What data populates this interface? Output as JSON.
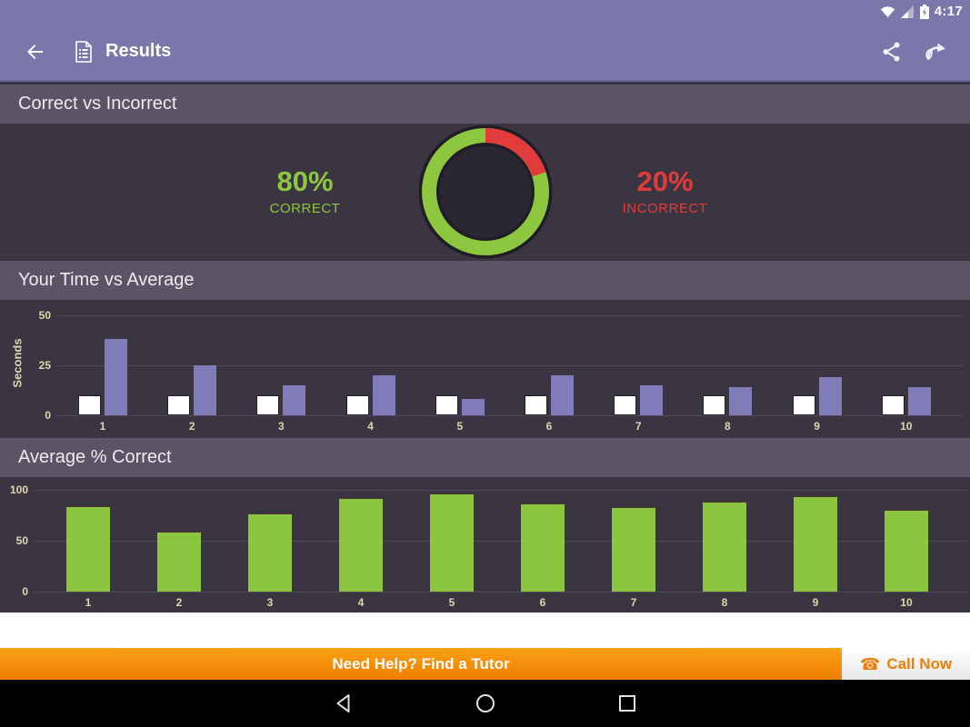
{
  "status_bar": {
    "time": "4:17",
    "icons": [
      "wifi-icon",
      "cell-signal-icon",
      "battery-charging-icon"
    ]
  },
  "app_bar": {
    "title": "Results",
    "icons": {
      "back": "back-arrow-icon",
      "doc": "results-document-icon",
      "share": "share-icon",
      "retake": "retake-arrow-icon"
    }
  },
  "sections": {
    "correct_vs_incorrect": {
      "header": "Correct vs Incorrect",
      "correct_pct": "80%",
      "correct_label": "CORRECT",
      "incorrect_pct": "20%",
      "incorrect_label": "INCORRECT"
    },
    "time_vs_average": {
      "header": "Your Time vs Average",
      "ylabel": "Seconds"
    },
    "average_correct": {
      "header": "Average % Correct"
    }
  },
  "banner": {
    "text": "Need Help? Find a Tutor",
    "call_now": "Call Now",
    "phone_glyph": "☎"
  },
  "colors": {
    "app_bar": "#7b77ab",
    "section_header_bg": "#5b5465",
    "content_bg": "#3b3542",
    "correct_green": "#8dc63f",
    "incorrect_red": "#e23b3b",
    "bar_purple": "#7f7cb9",
    "bar_white": "#ffffff",
    "bar_green": "#8cc641",
    "axis_text": "#ddd6ae",
    "banner_orange": "#f58d0e"
  },
  "chart_data": [
    {
      "type": "pie",
      "title": "Correct vs Incorrect",
      "slices": [
        {
          "label": "CORRECT",
          "value": 80,
          "color": "#8dc63f"
        },
        {
          "label": "INCORRECT",
          "value": 20,
          "color": "#e23b3b"
        }
      ],
      "style": "donut"
    },
    {
      "type": "bar",
      "title": "Your Time vs Average",
      "xlabel": "",
      "ylabel": "Seconds",
      "ylim": [
        0,
        50
      ],
      "yticks": [
        0,
        25,
        50
      ],
      "grid": true,
      "categories": [
        "1",
        "2",
        "3",
        "4",
        "5",
        "6",
        "7",
        "8",
        "9",
        "10"
      ],
      "series": [
        {
          "name": "Your Time",
          "color": "#ffffff",
          "values": [
            10,
            10,
            10,
            10,
            10,
            10,
            10,
            10,
            10,
            10
          ]
        },
        {
          "name": "Average",
          "color": "#7f7cb9",
          "values": [
            38,
            25,
            15,
            20,
            8,
            20,
            15,
            14,
            19,
            14
          ]
        }
      ]
    },
    {
      "type": "bar",
      "title": "Average % Correct",
      "xlabel": "",
      "ylabel": "",
      "ylim": [
        0,
        100
      ],
      "yticks": [
        0,
        50,
        100
      ],
      "grid": true,
      "categories": [
        "1",
        "2",
        "3",
        "4",
        "5",
        "6",
        "7",
        "8",
        "9",
        "10"
      ],
      "series": [
        {
          "name": "Average % Correct",
          "color": "#8cc641",
          "values": [
            84,
            59,
            77,
            92,
            96,
            87,
            83,
            88,
            94,
            80
          ]
        }
      ]
    }
  ]
}
